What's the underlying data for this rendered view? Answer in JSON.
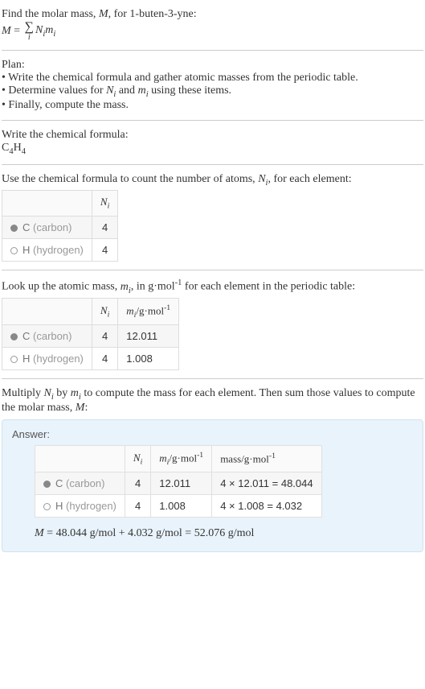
{
  "intro": {
    "line1_pre": "Find the molar mass, ",
    "line1_var": "M",
    "line1_post": ", for 1-buten-3-yne:",
    "eq_lhs": "M",
    "eq_N": "N",
    "eq_m": "m",
    "eq_idx": "i"
  },
  "plan": {
    "title": "Plan:",
    "b1": "• Write the chemical formula and gather atomic masses from the periodic table.",
    "b2_pre": "• Determine values for ",
    "b2_mid": " and ",
    "b2_post": " using these items.",
    "b3": "• Finally, compute the mass."
  },
  "chem": {
    "title": "Write the chemical formula:",
    "C": "C",
    "C_n": "4",
    "H": "H",
    "H_n": "4"
  },
  "count": {
    "title_pre": "Use the chemical formula to count the number of atoms, ",
    "title_post": ", for each element:",
    "hdr_N": "N",
    "hdr_i": "i",
    "rows": [
      {
        "sym": "C",
        "name": "(carbon)",
        "n": "4",
        "filled": true
      },
      {
        "sym": "H",
        "name": "(hydrogen)",
        "n": "4",
        "filled": false
      }
    ]
  },
  "mass": {
    "title_pre": "Look up the atomic mass, ",
    "title_mid": ", in g·mol",
    "title_exp": "-1",
    "title_post": " for each element in the periodic table:",
    "hdr_m": "m",
    "hdr_unit_pre": "/g·mol",
    "rows": [
      {
        "sym": "C",
        "name": "(carbon)",
        "n": "4",
        "m": "12.011",
        "filled": true
      },
      {
        "sym": "H",
        "name": "(hydrogen)",
        "n": "4",
        "m": "1.008",
        "filled": false
      }
    ]
  },
  "compute": {
    "title_pre": "Multiply ",
    "title_mid1": " by ",
    "title_mid2": " to compute the mass for each element. Then sum those values to compute the molar mass, ",
    "title_post": ":"
  },
  "answer": {
    "label": "Answer:",
    "hdr_mass_pre": "mass/g·mol",
    "rows": [
      {
        "sym": "C",
        "name": "(carbon)",
        "n": "4",
        "m": "12.011",
        "calc": "4 × 12.011 = 48.044",
        "filled": true
      },
      {
        "sym": "H",
        "name": "(hydrogen)",
        "n": "4",
        "m": "1.008",
        "calc": "4 × 1.008 = 4.032",
        "filled": false
      }
    ],
    "final_M": "M",
    "final_expr": " = 48.044 g/mol + 4.032 g/mol = 52.076 g/mol"
  }
}
